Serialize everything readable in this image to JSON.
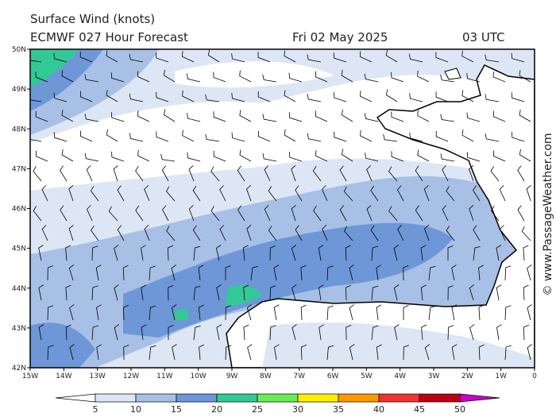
{
  "header": {
    "title": "Surface Wind (knots)",
    "model_line": "ECMWF 027 Hour Forecast",
    "date": "Fri 02 May 2025",
    "time": "03 UTC"
  },
  "lat_labels": [
    "50N",
    "49N",
    "48N",
    "47N",
    "46N",
    "45N",
    "44N",
    "43N",
    "42N"
  ],
  "lon_labels": [
    "15W",
    "14W",
    "13W",
    "12W",
    "11W",
    "10W",
    "9W",
    "8W",
    "7W",
    "6W",
    "5W",
    "4W",
    "3W",
    "2W",
    "1W",
    "0"
  ],
  "colorbar": {
    "labels": [
      5,
      10,
      15,
      20,
      25,
      30,
      35,
      40,
      45,
      50
    ],
    "colors": [
      "#ffffff",
      "#dde6f5",
      "#a8c0e6",
      "#6d97d6",
      "#33c996",
      "#66ee55",
      "#ffee00",
      "#ff9900",
      "#ee3333",
      "#bb0011",
      "#cc00cc"
    ]
  },
  "watermark": "© www.PassageWeather.com"
}
